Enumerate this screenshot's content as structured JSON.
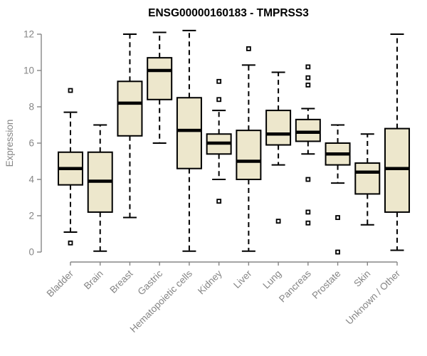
{
  "title": "ENSG00000160183 - TMPRSS3",
  "chart_data": {
    "type": "boxplot",
    "title": "ENSG00000160183 - TMPRSS3",
    "xlabel": "",
    "ylabel": "Expression",
    "ylim": [
      0,
      12.3
    ],
    "yticks": [
      0,
      2,
      4,
      6,
      8,
      10,
      12
    ],
    "grid": false,
    "legend": "none",
    "categories": [
      "Bladder",
      "Brain",
      "Breast",
      "Gastric",
      "Hematopoietic cells",
      "Kidney",
      "Liver",
      "Lung",
      "Pancreas",
      "Prostate",
      "Skin",
      "Unknown / Other"
    ],
    "series": [
      {
        "category": "Bladder",
        "whisker_low": 1.1,
        "q1": 3.7,
        "median": 4.6,
        "q3": 5.5,
        "whisker_high": 7.7,
        "outliers": [
          8.9,
          0.5
        ]
      },
      {
        "category": "Brain",
        "whisker_low": 0.05,
        "q1": 2.2,
        "median": 3.9,
        "q3": 5.5,
        "whisker_high": 7.0,
        "outliers": []
      },
      {
        "category": "Breast",
        "whisker_low": 1.9,
        "q1": 6.4,
        "median": 8.2,
        "q3": 9.4,
        "whisker_high": 12.0,
        "outliers": []
      },
      {
        "category": "Gastric",
        "whisker_low": 6.0,
        "q1": 8.4,
        "median": 10.0,
        "q3": 10.7,
        "whisker_high": 12.1,
        "outliers": []
      },
      {
        "category": "Hematopoietic cells",
        "whisker_low": 0.05,
        "q1": 4.6,
        "median": 6.7,
        "q3": 8.5,
        "whisker_high": 12.2,
        "outliers": []
      },
      {
        "category": "Kidney",
        "whisker_low": 4.0,
        "q1": 5.4,
        "median": 6.0,
        "q3": 6.5,
        "whisker_high": 7.8,
        "outliers": [
          9.4,
          8.4,
          2.8
        ]
      },
      {
        "category": "Liver",
        "whisker_low": 0.05,
        "q1": 4.0,
        "median": 5.0,
        "q3": 6.7,
        "whisker_high": 10.3,
        "outliers": [
          11.2
        ]
      },
      {
        "category": "Lung",
        "whisker_low": 4.8,
        "q1": 5.9,
        "median": 6.5,
        "q3": 7.8,
        "whisker_high": 9.9,
        "outliers": [
          1.7
        ]
      },
      {
        "category": "Pancreas",
        "whisker_low": 5.4,
        "q1": 6.1,
        "median": 6.6,
        "q3": 7.3,
        "whisker_high": 7.9,
        "outliers": [
          10.2,
          9.6,
          9.2,
          4.0,
          2.2,
          1.6
        ]
      },
      {
        "category": "Prostate",
        "whisker_low": 3.8,
        "q1": 4.8,
        "median": 5.4,
        "q3": 6.0,
        "whisker_high": 7.0,
        "outliers": [
          1.9,
          0.0
        ]
      },
      {
        "category": "Skin",
        "whisker_low": 1.5,
        "q1": 3.2,
        "median": 4.4,
        "q3": 4.9,
        "whisker_high": 6.5,
        "outliers": []
      },
      {
        "category": "Unknown / Other",
        "whisker_low": 0.1,
        "q1": 2.2,
        "median": 4.6,
        "q3": 6.8,
        "whisker_high": 12.0,
        "outliers": []
      }
    ],
    "box_fill": "#EDE7CC",
    "box_stroke": "#000000",
    "median_color": "#000000",
    "axis_color": "#858585"
  }
}
